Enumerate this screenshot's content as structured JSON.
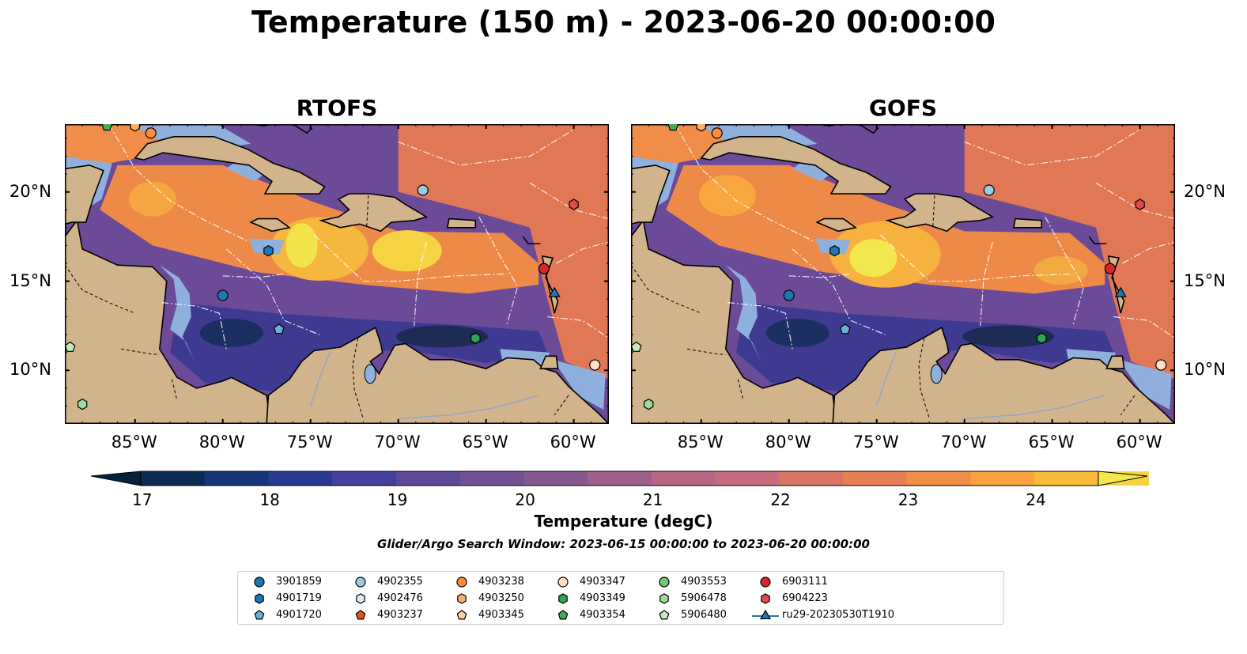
{
  "title": "Temperature (150 m) - 2023-06-20 00:00:00",
  "panels": [
    {
      "name": "RTOFS"
    },
    {
      "name": "GOFS"
    }
  ],
  "lon_ticks": [
    "85°W",
    "80°W",
    "75°W",
    "70°W",
    "65°W",
    "60°W"
  ],
  "lat_ticks": [
    "20°N",
    "15°N",
    "10°N"
  ],
  "colorbar": {
    "min": 17,
    "max": 24.5,
    "ticks": [
      "17",
      "18",
      "19",
      "20",
      "21",
      "22",
      "23",
      "24"
    ],
    "label": "Temperature (degC)",
    "colors": [
      "#06223a",
      "#0c2b52",
      "#16357a",
      "#2a3a93",
      "#45409c",
      "#5e4899",
      "#735094",
      "#87588f",
      "#9e5f8b",
      "#b76686",
      "#c76b7e",
      "#d87463",
      "#e77f52",
      "#f28f46",
      "#f8a33e",
      "#f9b93b",
      "#f6d23f",
      "#f2e84d"
    ]
  },
  "search_window": "Glider/Argo Search Window: 2023-06-15 00:00:00 to 2023-06-20 00:00:00",
  "legend": [
    {
      "label": "3901859",
      "shape": "circle",
      "color": "#1f77b4"
    },
    {
      "label": "4901719",
      "shape": "hexagon",
      "color": "#1f77b4"
    },
    {
      "label": "4901720",
      "shape": "pentagon",
      "color": "#6baed6"
    },
    {
      "label": "4902355",
      "shape": "circle",
      "color": "#9ecae1"
    },
    {
      "label": "4902476",
      "shape": "hexagon",
      "color": "#deebf7"
    },
    {
      "label": "4903237",
      "shape": "pentagon",
      "color": "#e6550d"
    },
    {
      "label": "4903238",
      "shape": "circle",
      "color": "#fd8d3c"
    },
    {
      "label": "4903250",
      "shape": "hexagon",
      "color": "#fdae6b"
    },
    {
      "label": "4903345",
      "shape": "pentagon",
      "color": "#fdd0a2"
    },
    {
      "label": "4903347",
      "shape": "circle",
      "color": "#fde0c5"
    },
    {
      "label": "4903349",
      "shape": "hexagon",
      "color": "#31a354"
    },
    {
      "label": "4903354",
      "shape": "pentagon",
      "color": "#41ab5d"
    },
    {
      "label": "4903553",
      "shape": "circle",
      "color": "#74c476"
    },
    {
      "label": "5906478",
      "shape": "hexagon",
      "color": "#a1d99b"
    },
    {
      "label": "5906480",
      "shape": "pentagon",
      "color": "#c7e9c0"
    },
    {
      "label": "6903111",
      "shape": "circle",
      "color": "#d62728"
    },
    {
      "label": "6904223",
      "shape": "hexagon",
      "color": "#e34a4a"
    },
    {
      "label": "ru29-20230530T1910",
      "shape": "triangle-line",
      "color": "#1f77b4"
    }
  ],
  "platforms": [
    {
      "id": "3901859",
      "lon": -80.0,
      "lat": 14.2,
      "shape": "circle",
      "color": "#1f77b4"
    },
    {
      "id": "4901719",
      "lon": -77.4,
      "lat": 16.7,
      "shape": "hexagon",
      "color": "#1f77b4"
    },
    {
      "id": "4901720",
      "lon": -76.8,
      "lat": 12.3,
      "shape": "pentagon",
      "color": "#6baed6"
    },
    {
      "id": "4902355",
      "lon": -68.6,
      "lat": 20.1,
      "shape": "circle",
      "color": "#9ecae1"
    },
    {
      "id": "4903237",
      "lon": -84.9,
      "lat": 23.9,
      "shape": "pentagon",
      "color": "#e6550d"
    },
    {
      "id": "4903238",
      "lon": -84.1,
      "lat": 23.3,
      "shape": "circle",
      "color": "#fd8d3c"
    },
    {
      "id": "4903250",
      "lon": -85.0,
      "lat": 23.7,
      "shape": "hexagon",
      "color": "#fdae6b"
    },
    {
      "id": "4903347",
      "lon": -58.8,
      "lat": 10.3,
      "shape": "circle",
      "color": "#fde0c5"
    },
    {
      "id": "4903349",
      "lon": -65.6,
      "lat": 11.8,
      "shape": "hexagon",
      "color": "#31a354"
    },
    {
      "id": "4903354",
      "lon": -86.6,
      "lat": 23.7,
      "shape": "pentagon",
      "color": "#41ab5d"
    },
    {
      "id": "5906480",
      "lon": -88.7,
      "lat": 11.3,
      "shape": "pentagon",
      "color": "#c7e9c0"
    },
    {
      "id": "5906478",
      "lon": -88.0,
      "lat": 8.1,
      "shape": "hexagon",
      "color": "#a1d99b"
    },
    {
      "id": "6903111",
      "lon": -61.7,
      "lat": 15.7,
      "shape": "circle",
      "color": "#d62728"
    },
    {
      "id": "6904223",
      "lon": -60.0,
      "lat": 19.3,
      "shape": "hexagon",
      "color": "#e34a4a"
    },
    {
      "id": "ru29-20230530T1910",
      "lon": -61.1,
      "lat": 14.3,
      "shape": "triangle",
      "color": "#1f77b4"
    }
  ],
  "map_extent": {
    "lon": [
      -89,
      -58
    ],
    "lat": [
      7,
      23.8
    ]
  }
}
